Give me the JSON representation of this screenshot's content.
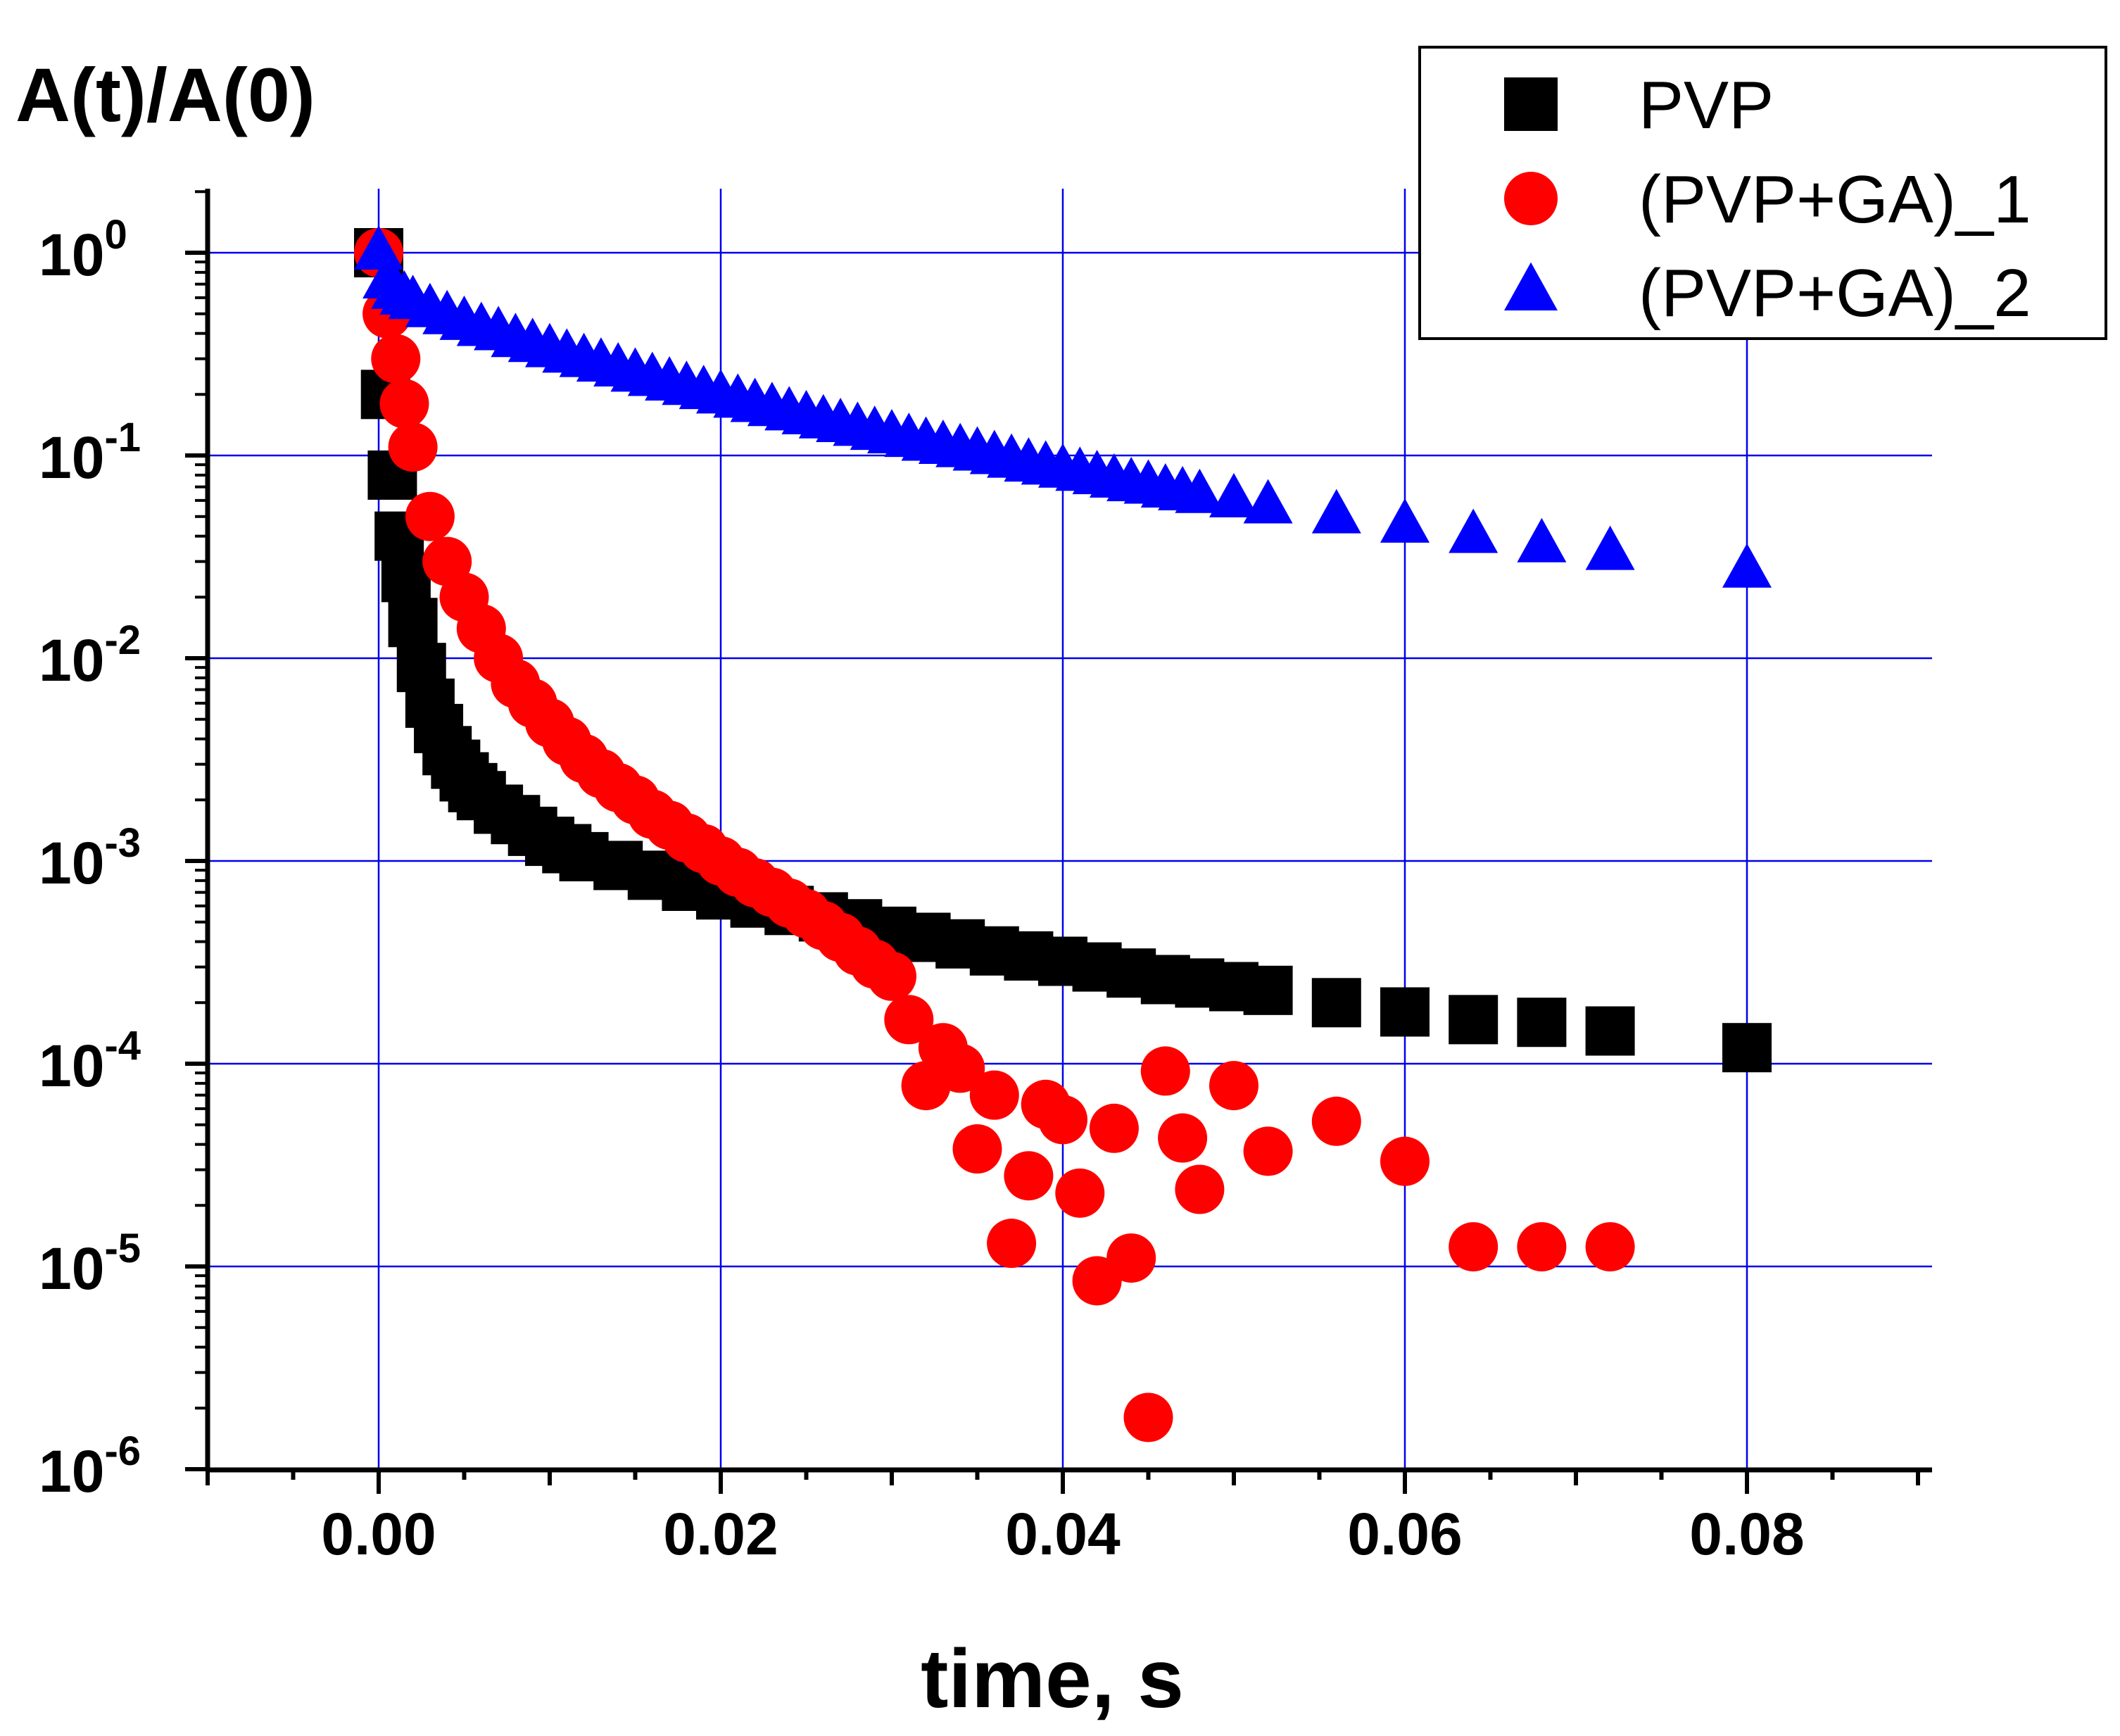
{
  "chart_data": {
    "type": "scatter",
    "title": "",
    "ylabel": "A(t)/A(0)",
    "xlabel": "time, s",
    "xlim": [
      -0.01,
      0.09
    ],
    "ylim_log10": [
      -6,
      0.5
    ],
    "yscale": "log",
    "grid": true,
    "legend_position": "top-right",
    "x_ticks": [
      "0.00",
      "0.02",
      "0.04",
      "0.06",
      "0.08"
    ],
    "x_tick_values": [
      0.0,
      0.02,
      0.04,
      0.06,
      0.08
    ],
    "y_ticks": [
      {
        "base": "10",
        "exp": "0"
      },
      {
        "base": "10",
        "exp": "-1"
      },
      {
        "base": "10",
        "exp": "-2"
      },
      {
        "base": "10",
        "exp": "-3"
      },
      {
        "base": "10",
        "exp": "-4"
      },
      {
        "base": "10",
        "exp": "-5"
      },
      {
        "base": "10",
        "exp": "-6"
      }
    ],
    "y_tick_values": [
      1,
      0.1,
      0.01,
      0.001,
      0.0001,
      1e-05,
      1e-06
    ],
    "colors": {
      "grid": "#0000ee",
      "PVP": "#000000",
      "PVP_GA_1": "#ff0000",
      "PVP_GA_2": "#0000ff"
    },
    "series": [
      {
        "name": "PVP",
        "marker": "square",
        "color": "#000000",
        "x": [
          0.0,
          0.0004,
          0.0008,
          0.0012,
          0.0016,
          0.002,
          0.0025,
          0.003,
          0.0035,
          0.004,
          0.0045,
          0.005,
          0.0055,
          0.006,
          0.007,
          0.008,
          0.009,
          0.01,
          0.011,
          0.012,
          0.014,
          0.016,
          0.018,
          0.02,
          0.022,
          0.024,
          0.026,
          0.028,
          0.03,
          0.032,
          0.034,
          0.036,
          0.038,
          0.04,
          0.042,
          0.044,
          0.046,
          0.048,
          0.05,
          0.052,
          0.056,
          0.06,
          0.064,
          0.068,
          0.072,
          0.08
        ],
        "y": [
          1.0,
          0.2,
          0.08,
          0.04,
          0.025,
          0.015,
          0.009,
          0.006,
          0.0045,
          0.0035,
          0.003,
          0.0026,
          0.0023,
          0.0021,
          0.0018,
          0.0016,
          0.0014,
          0.00125,
          0.00115,
          0.00105,
          0.00095,
          0.00085,
          0.00075,
          0.00068,
          0.00062,
          0.00057,
          0.00053,
          0.00049,
          0.00045,
          0.00042,
          0.00039,
          0.00036,
          0.00034,
          0.00032,
          0.0003,
          0.00028,
          0.00026,
          0.00025,
          0.00024,
          0.00023,
          0.0002,
          0.00018,
          0.000165,
          0.00016,
          0.000145,
          0.00012
        ]
      },
      {
        "name": "(PVP+GA)_1",
        "marker": "circle",
        "color": "#ff0000",
        "x": [
          0.0,
          0.0005,
          0.001,
          0.0015,
          0.002,
          0.003,
          0.004,
          0.005,
          0.006,
          0.007,
          0.008,
          0.009,
          0.01,
          0.011,
          0.012,
          0.013,
          0.014,
          0.015,
          0.016,
          0.017,
          0.018,
          0.019,
          0.02,
          0.021,
          0.022,
          0.023,
          0.024,
          0.025,
          0.026,
          0.027,
          0.028,
          0.029,
          0.03,
          0.031,
          0.032,
          0.033,
          0.034,
          0.035,
          0.036,
          0.037,
          0.038,
          0.039,
          0.04,
          0.041,
          0.042,
          0.043,
          0.044,
          0.045,
          0.046,
          0.047,
          0.048,
          0.05,
          0.052,
          0.056,
          0.06,
          0.064,
          0.068,
          0.072
        ],
        "y": [
          1.0,
          0.5,
          0.3,
          0.18,
          0.11,
          0.05,
          0.03,
          0.02,
          0.014,
          0.01,
          0.0075,
          0.006,
          0.0048,
          0.0039,
          0.0032,
          0.0027,
          0.0023,
          0.002,
          0.0017,
          0.0015,
          0.0013,
          0.00115,
          0.001,
          0.00088,
          0.00078,
          0.0007,
          0.00062,
          0.00055,
          0.00048,
          0.00042,
          0.00036,
          0.00031,
          0.00027,
          0.000165,
          7.8e-05,
          0.00012,
          9.5e-05,
          3.8e-05,
          7e-05,
          1.3e-05,
          2.8e-05,
          6.3e-05,
          5.3e-05,
          2.3e-05,
          8.5e-06,
          4.8e-05,
          1.1e-05,
          1.8e-06,
          9.2e-05,
          4.3e-05,
          2.4e-05,
          7.8e-05,
          3.7e-05,
          5.2e-05,
          3.3e-05,
          1.25e-05,
          1.25e-05,
          1.25e-05
        ]
      },
      {
        "name": "(PVP+GA)_2",
        "marker": "triangle",
        "color": "#0000ff",
        "x": [
          0.0,
          0.0005,
          0.001,
          0.0015,
          0.002,
          0.003,
          0.004,
          0.005,
          0.006,
          0.007,
          0.008,
          0.009,
          0.01,
          0.011,
          0.012,
          0.013,
          0.014,
          0.015,
          0.016,
          0.017,
          0.018,
          0.019,
          0.02,
          0.021,
          0.022,
          0.023,
          0.024,
          0.025,
          0.026,
          0.027,
          0.028,
          0.029,
          0.03,
          0.031,
          0.032,
          0.033,
          0.034,
          0.035,
          0.036,
          0.037,
          0.038,
          0.039,
          0.04,
          0.041,
          0.042,
          0.043,
          0.044,
          0.045,
          0.046,
          0.047,
          0.048,
          0.05,
          0.052,
          0.056,
          0.06,
          0.064,
          0.068,
          0.072,
          0.08
        ],
        "y": [
          1.0,
          0.72,
          0.64,
          0.6,
          0.57,
          0.52,
          0.48,
          0.45,
          0.42,
          0.4,
          0.37,
          0.35,
          0.33,
          0.31,
          0.295,
          0.28,
          0.265,
          0.25,
          0.238,
          0.226,
          0.215,
          0.205,
          0.195,
          0.186,
          0.177,
          0.169,
          0.161,
          0.154,
          0.147,
          0.141,
          0.135,
          0.129,
          0.124,
          0.119,
          0.114,
          0.11,
          0.106,
          0.102,
          0.098,
          0.094,
          0.09,
          0.087,
          0.084,
          0.081,
          0.078,
          0.075,
          0.072,
          0.07,
          0.067,
          0.065,
          0.063,
          0.06,
          0.056,
          0.05,
          0.045,
          0.04,
          0.036,
          0.033,
          0.027
        ]
      }
    ]
  }
}
